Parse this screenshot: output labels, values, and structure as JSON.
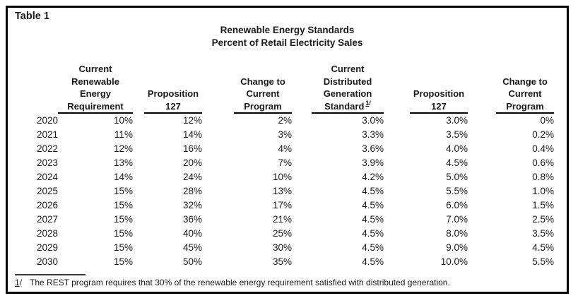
{
  "frame": {
    "label": "Table 1"
  },
  "title": {
    "line1": "Renewable Energy Standards",
    "line2": "Percent of Retail Electricity Sales"
  },
  "columns": {
    "req": "Current\nRenewable\nEnergy\nRequirement",
    "prop127_a": "Proposition\n127",
    "change_a": "Change to\nCurrent\nProgram",
    "dg": "Current\nDistributed\nGeneration\nStandard",
    "dg_sup_num": "1",
    "dg_sup_slash": "/",
    "prop127_b": "Proposition\n127",
    "change_b": "Change to\nCurrent\nProgram"
  },
  "rows": [
    [
      "2020",
      "10%",
      "12%",
      "2%",
      "3.0%",
      "3.0%",
      "0%"
    ],
    [
      "2021",
      "11%",
      "14%",
      "3%",
      "3.3%",
      "3.5%",
      "0.2%"
    ],
    [
      "2022",
      "12%",
      "16%",
      "4%",
      "3.6%",
      "4.0%",
      "0.4%"
    ],
    [
      "2023",
      "13%",
      "20%",
      "7%",
      "3.9%",
      "4.5%",
      "0.6%"
    ],
    [
      "2024",
      "14%",
      "24%",
      "10%",
      "4.2%",
      "5.0%",
      "0.8%"
    ],
    [
      "2025",
      "15%",
      "28%",
      "13%",
      "4.5%",
      "5.5%",
      "1.0%"
    ],
    [
      "2026",
      "15%",
      "32%",
      "17%",
      "4.5%",
      "6.0%",
      "1.5%"
    ],
    [
      "2027",
      "15%",
      "36%",
      "21%",
      "4.5%",
      "7.0%",
      "2.5%"
    ],
    [
      "2028",
      "15%",
      "40%",
      "25%",
      "4.5%",
      "8.0%",
      "3.5%"
    ],
    [
      "2029",
      "15%",
      "45%",
      "30%",
      "4.5%",
      "9.0%",
      "4.5%"
    ],
    [
      "2030",
      "15%",
      "50%",
      "35%",
      "4.5%",
      "10.0%",
      "5.5%"
    ]
  ],
  "footnote": {
    "marker_num": "1",
    "marker_slash": "/",
    "text": "The REST program requires that 30% of the renewable energy requirement satisfied with distributed generation."
  },
  "colors": {
    "text": "#1a1a1a",
    "border": "#000000",
    "rule": "#3a3a3a",
    "background": "#ffffff"
  }
}
